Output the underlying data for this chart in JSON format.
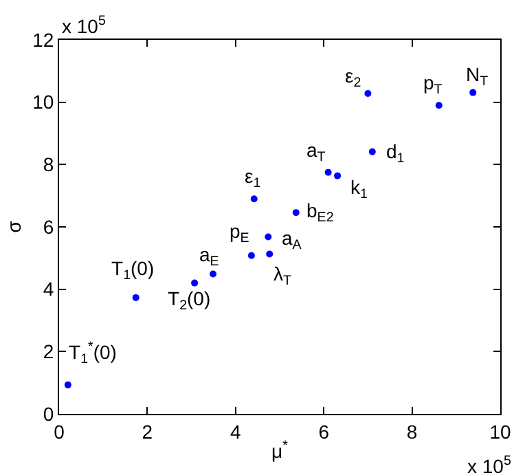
{
  "chart_data": {
    "type": "scatter",
    "xlabel": "μ$^{*}$",
    "ylabel": "σ",
    "x": [
      0.2,
      1.74,
      3.07,
      3.49,
      4.36,
      4.74,
      4.77,
      4.42,
      5.37,
      6.1,
      6.31,
      7.1,
      7.0,
      8.61,
      9.38
    ],
    "series": [
      {
        "color": "#0000ff",
        "values": [
          0.93,
          3.73,
          4.2,
          4.49,
          5.08,
          5.68,
          5.13,
          6.9,
          6.46,
          7.75,
          7.64,
          8.41,
          10.28,
          9.9,
          10.31
        ]
      }
    ],
    "xlim": [
      0,
      10
    ],
    "xticks": [
      0,
      2,
      4,
      6,
      8,
      10
    ],
    "ylim": [
      0,
      12
    ],
    "yticks": [
      0,
      2,
      4,
      6,
      8,
      10,
      12
    ],
    "marker": "circle",
    "annotations": [
      "x 10$^{5}$",
      "x 10$^{5}$",
      {
        "text": "T$_{1}$$^{*}$(0)",
        "x": 0.2,
        "y": 0.93
      },
      {
        "text": "T$_{1}$(0)",
        "x": 1.74,
        "y": 3.73
      },
      {
        "text": "T$_{2}$(0)",
        "x": 3.07,
        "y": 4.2
      },
      {
        "text": "a$_{E}$",
        "x": 3.49,
        "y": 4.49
      },
      {
        "text": "p$_{E}$",
        "x": 4.36,
        "y": 5.08
      },
      {
        "text": "a$_{A}$",
        "x": 4.74,
        "y": 5.68
      },
      {
        "text": "λ$_{T}$",
        "x": 4.77,
        "y": 5.13
      },
      {
        "text": "ε$_{1}$",
        "x": 4.42,
        "y": 6.9
      },
      {
        "text": "b$_{E2}$",
        "x": 5.37,
        "y": 6.46
      },
      {
        "text": "a$_{T}$",
        "x": 6.1,
        "y": 7.75
      },
      {
        "text": "k$_{1}$",
        "x": 6.31,
        "y": 7.64
      },
      {
        "text": "d$_{1}$",
        "x": 7.1,
        "y": 8.41
      },
      {
        "text": "ε$_{2}$",
        "x": 7.0,
        "y": 10.28
      },
      {
        "text": "p$_{T}$",
        "x": 8.61,
        "y": 9.9
      },
      {
        "text": "N$_{T}$",
        "x": 9.38,
        "y": 10.31
      }
    ]
  }
}
